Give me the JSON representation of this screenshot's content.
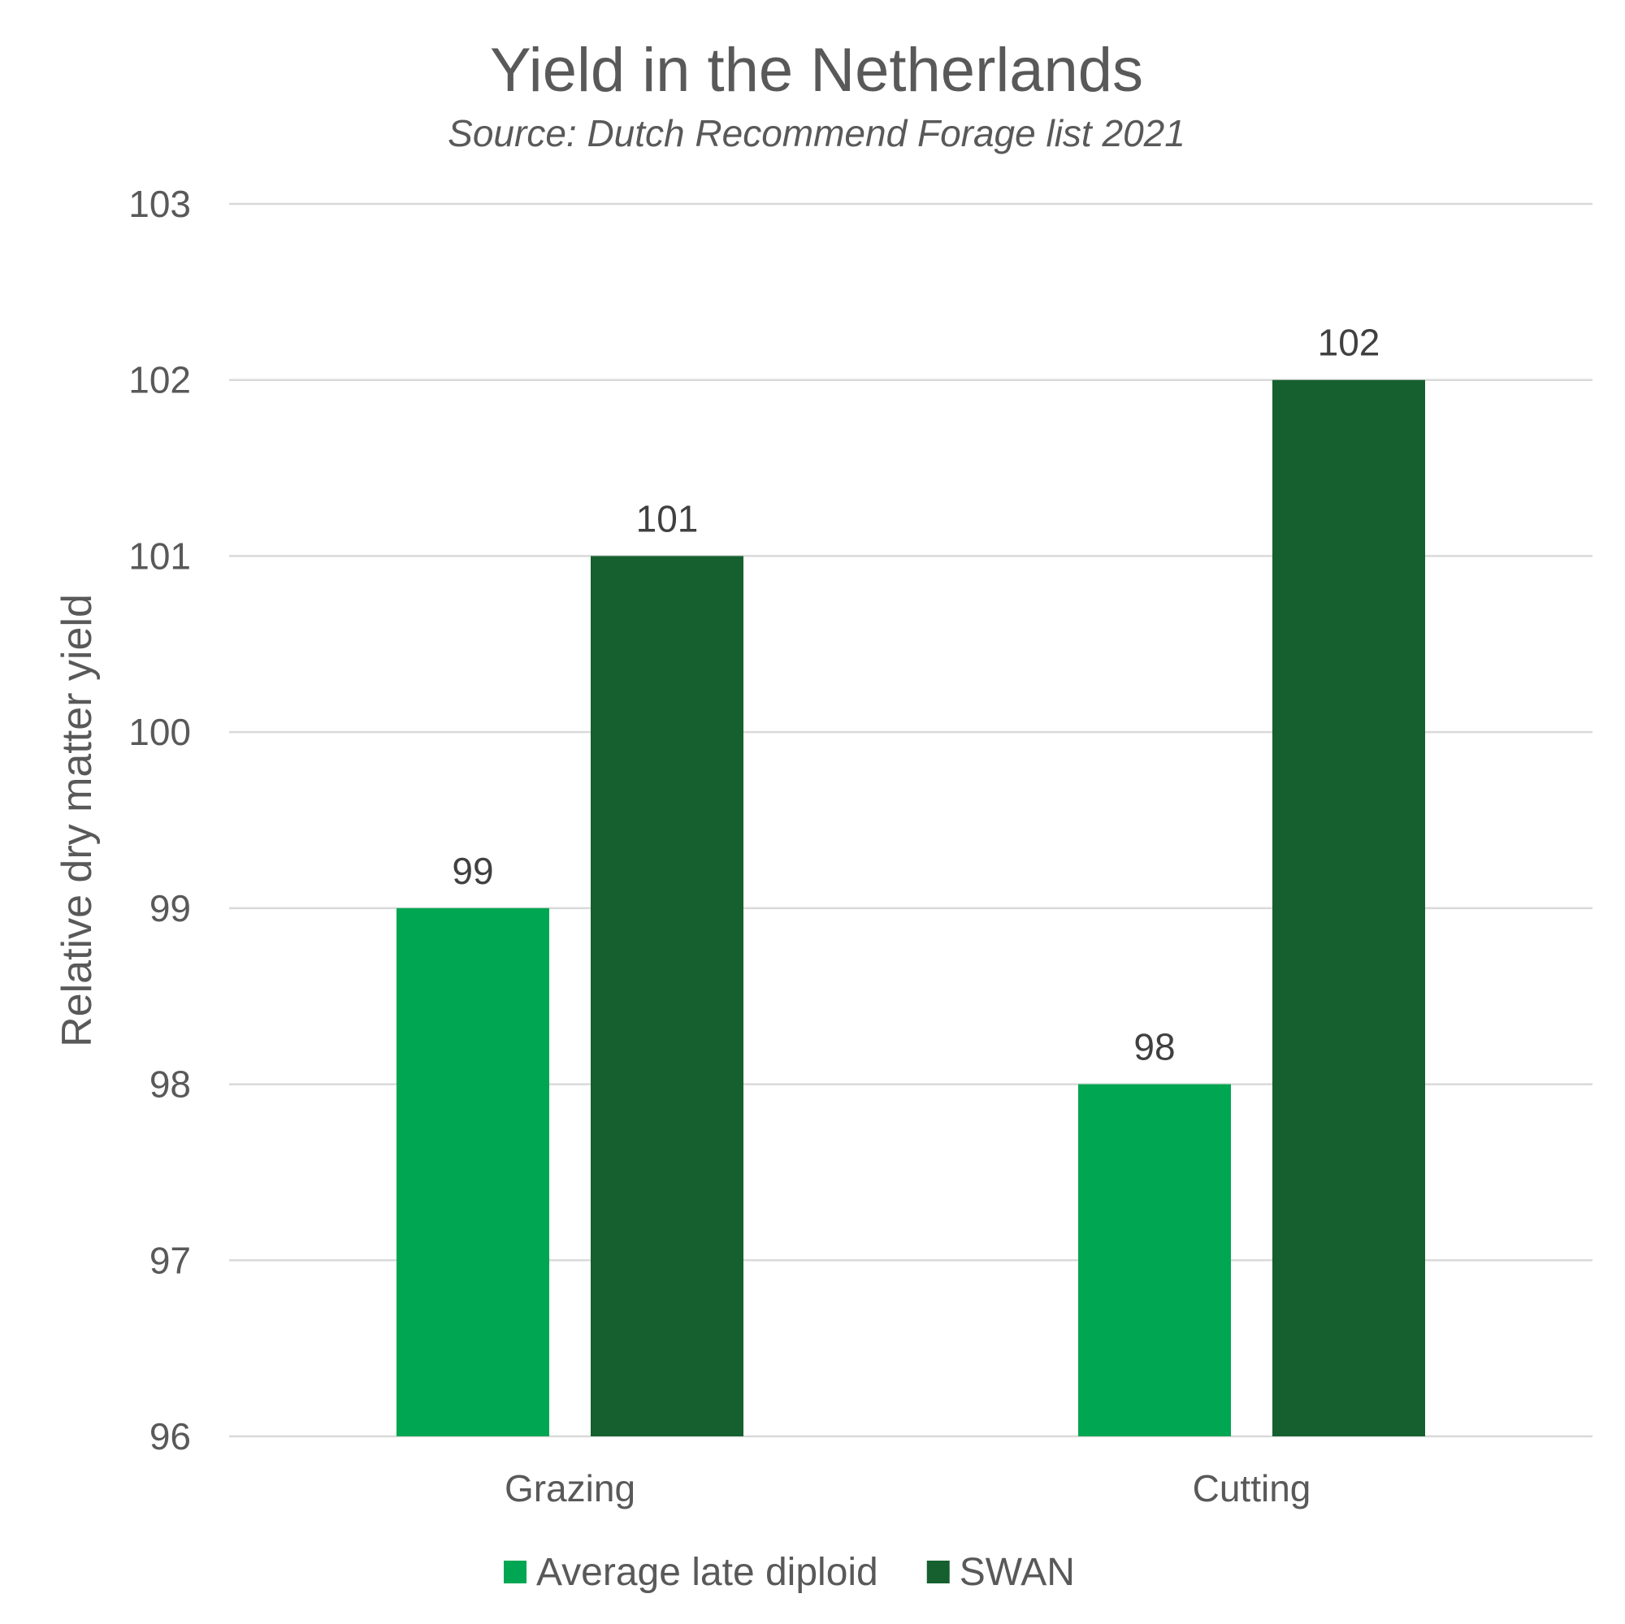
{
  "chart_data": {
    "type": "bar",
    "title": "Yield in the Netherlands",
    "subtitle": "Source: Dutch Recommend Forage list 2021",
    "xlabel": "",
    "ylabel": "Relative dry matter yield",
    "categories": [
      "Grazing",
      "Cutting"
    ],
    "series": [
      {
        "name": "Average late diploid",
        "values": [
          99,
          98
        ],
        "color": "#00A651"
      },
      {
        "name": "SWAN",
        "values": [
          101,
          102
        ],
        "color": "#15602E"
      }
    ],
    "ylim": [
      96,
      103
    ],
    "yticks": [
      96,
      97,
      98,
      99,
      100,
      101,
      102,
      103
    ],
    "grid": true,
    "legend": "bottom",
    "data_labels": true
  }
}
